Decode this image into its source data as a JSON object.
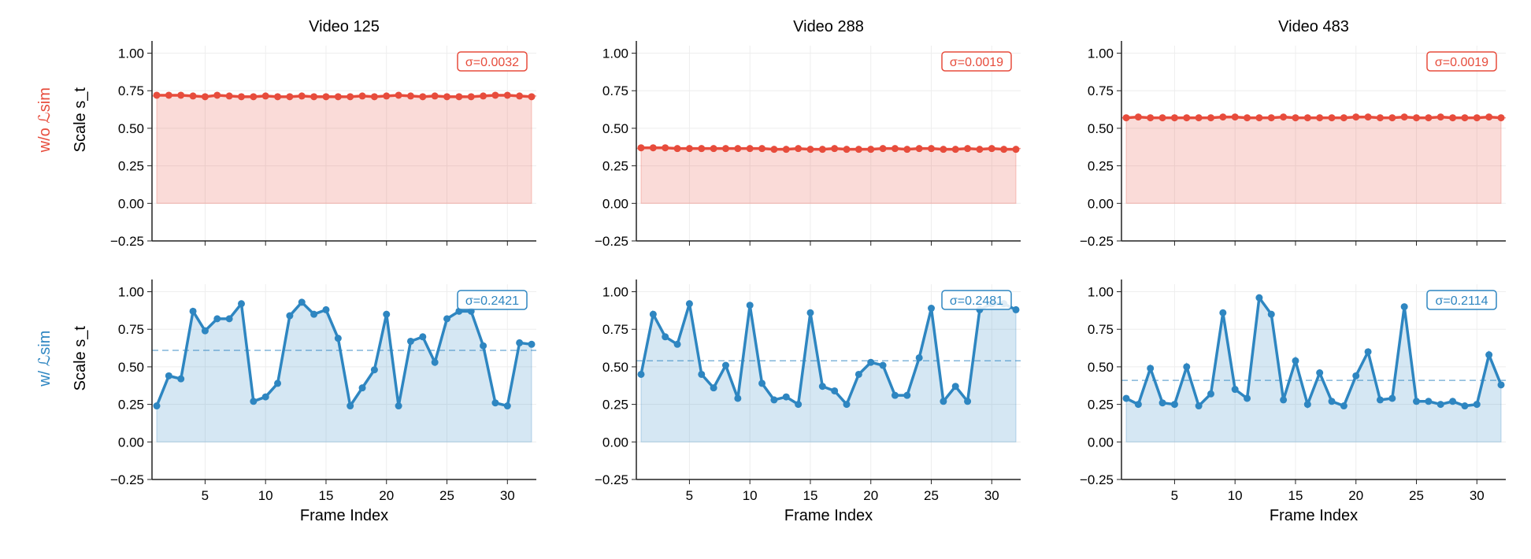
{
  "chart_data": [
    {
      "type": "line",
      "row_label": "w/o ℒsim",
      "title": "Video 125",
      "ylabel": "Scale s_t",
      "xlabel": "",
      "sigma": "σ=0.0032",
      "color": "#e74c3c",
      "mean": 0.715,
      "ylim": [
        -0.25,
        1.05
      ],
      "yticks": [
        "1.00",
        "0.75",
        "0.50",
        "0.25",
        "0.00",
        "−0.25"
      ],
      "xticks": [],
      "x_range": [
        1,
        32
      ],
      "values": [
        0.72,
        0.72,
        0.72,
        0.715,
        0.71,
        0.72,
        0.715,
        0.71,
        0.71,
        0.715,
        0.71,
        0.71,
        0.715,
        0.71,
        0.71,
        0.71,
        0.71,
        0.715,
        0.71,
        0.715,
        0.72,
        0.715,
        0.71,
        0.715,
        0.71,
        0.71,
        0.71,
        0.715,
        0.72,
        0.72,
        0.715,
        0.71
      ]
    },
    {
      "type": "line",
      "title": "Video 288",
      "sigma": "σ=0.0019",
      "color": "#e74c3c",
      "mean": 0.365,
      "ylim": [
        -0.25,
        1.05
      ],
      "yticks": [
        "1.00",
        "0.75",
        "0.50",
        "0.25",
        "0.00",
        "−0.25"
      ],
      "xticks": [],
      "x_range": [
        1,
        32
      ],
      "values": [
        0.37,
        0.37,
        0.37,
        0.365,
        0.365,
        0.365,
        0.365,
        0.365,
        0.365,
        0.365,
        0.365,
        0.36,
        0.36,
        0.365,
        0.36,
        0.36,
        0.365,
        0.36,
        0.36,
        0.36,
        0.365,
        0.365,
        0.36,
        0.365,
        0.365,
        0.36,
        0.36,
        0.365,
        0.36,
        0.365,
        0.36,
        0.36
      ]
    },
    {
      "type": "line",
      "title": "Video 483",
      "sigma": "σ=0.0019",
      "color": "#e74c3c",
      "mean": 0.57,
      "ylim": [
        -0.25,
        1.05
      ],
      "yticks": [
        "1.00",
        "0.75",
        "0.50",
        "0.25",
        "0.00",
        "−0.25"
      ],
      "xticks": [],
      "x_range": [
        1,
        32
      ],
      "values": [
        0.57,
        0.575,
        0.57,
        0.57,
        0.57,
        0.57,
        0.57,
        0.57,
        0.575,
        0.575,
        0.57,
        0.57,
        0.57,
        0.575,
        0.57,
        0.57,
        0.57,
        0.57,
        0.57,
        0.575,
        0.575,
        0.57,
        0.57,
        0.575,
        0.57,
        0.57,
        0.575,
        0.57,
        0.57,
        0.57,
        0.575,
        0.57
      ]
    },
    {
      "type": "line",
      "row_label": "w/ ℒsim",
      "ylabel": "Scale s_t",
      "xlabel": "Frame Index",
      "sigma": "σ=0.2421",
      "color": "#2e86c1",
      "mean": 0.61,
      "ylim": [
        -0.25,
        1.05
      ],
      "yticks": [
        "1.00",
        "0.75",
        "0.50",
        "0.25",
        "0.00",
        "−0.25"
      ],
      "xticks": [
        "5",
        "10",
        "15",
        "20",
        "25",
        "30"
      ],
      "x_range": [
        1,
        32
      ],
      "values": [
        0.24,
        0.44,
        0.42,
        0.87,
        0.74,
        0.82,
        0.82,
        0.92,
        0.27,
        0.3,
        0.39,
        0.84,
        0.93,
        0.85,
        0.88,
        0.69,
        0.24,
        0.36,
        0.48,
        0.85,
        0.24,
        0.67,
        0.7,
        0.53,
        0.82,
        0.87,
        0.87,
        0.64,
        0.26,
        0.24,
        0.66,
        0.65
      ]
    },
    {
      "type": "line",
      "xlabel": "Frame Index",
      "sigma": "σ=0.2481",
      "color": "#2e86c1",
      "mean": 0.54,
      "ylim": [
        -0.25,
        1.05
      ],
      "yticks": [
        "1.00",
        "0.75",
        "0.50",
        "0.25",
        "0.00",
        "−0.25"
      ],
      "xticks": [
        "5",
        "10",
        "15",
        "20",
        "25",
        "30"
      ],
      "x_range": [
        1,
        32
      ],
      "values": [
        0.45,
        0.85,
        0.7,
        0.65,
        0.92,
        0.45,
        0.36,
        0.51,
        0.29,
        0.91,
        0.39,
        0.28,
        0.3,
        0.25,
        0.86,
        0.37,
        0.34,
        0.25,
        0.45,
        0.53,
        0.51,
        0.31,
        0.31,
        0.56,
        0.89,
        0.27,
        0.37,
        0.27,
        0.88,
        0.92,
        0.92,
        0.88
      ]
    },
    {
      "type": "line",
      "xlabel": "Frame Index",
      "sigma": "σ=0.2114",
      "color": "#2e86c1",
      "mean": 0.41,
      "ylim": [
        -0.25,
        1.05
      ],
      "yticks": [
        "1.00",
        "0.75",
        "0.50",
        "0.25",
        "0.00",
        "−0.25"
      ],
      "xticks": [
        "5",
        "10",
        "15",
        "20",
        "25",
        "30"
      ],
      "x_range": [
        1,
        32
      ],
      "values": [
        0.29,
        0.25,
        0.49,
        0.26,
        0.25,
        0.5,
        0.24,
        0.32,
        0.86,
        0.35,
        0.29,
        0.96,
        0.85,
        0.28,
        0.54,
        0.25,
        0.46,
        0.27,
        0.24,
        0.44,
        0.6,
        0.28,
        0.29,
        0.9,
        0.27,
        0.27,
        0.25,
        0.27,
        0.24,
        0.25,
        0.58,
        0.38
      ]
    }
  ]
}
